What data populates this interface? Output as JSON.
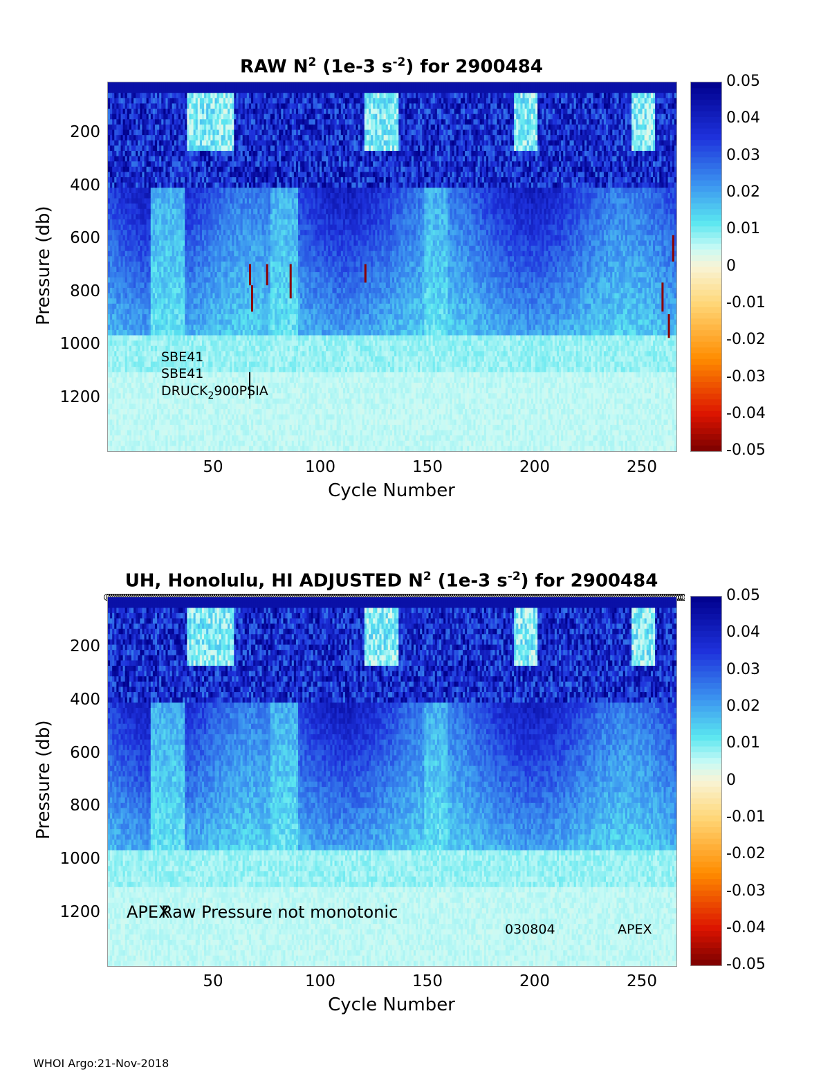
{
  "chart_data": [
    {
      "type": "heatmap",
      "title_prefix": "RAW N",
      "title_exp": "2",
      "title_units": " (1e-3 s",
      "title_units_exp": "-2",
      "title_suffix": ") for 2900484",
      "xlabel": "Cycle Number",
      "ylabel": "Pressure (db)",
      "x_ticks": [
        "50",
        "100",
        "150",
        "200",
        "250"
      ],
      "y_ticks": [
        "200",
        "400",
        "600",
        "800",
        "1000",
        "1200"
      ],
      "xlim": [
        1,
        266
      ],
      "ylim": [
        1400,
        0
      ],
      "colorbar_ticks": [
        "0.05",
        "0.04",
        "0.03",
        "0.02",
        "0.01",
        "0",
        "-0.01",
        "-0.02",
        "-0.03",
        "-0.04",
        "-0.05"
      ],
      "clim": [
        -0.05,
        0.05
      ],
      "annotations": [
        "SBE41",
        "SBE41",
        "DRUCK",
        "2",
        "900PSIA"
      ]
    },
    {
      "type": "heatmap",
      "title_prefix": "UH, Honolulu, HI  ADJUSTED N",
      "title_exp": "2",
      "title_units": " (1e-3 s",
      "title_units_exp": "-2",
      "title_suffix": ") for 2900484",
      "xlabel": "Cycle Number",
      "ylabel": "Pressure (db)",
      "x_ticks": [
        "50",
        "100",
        "150",
        "200",
        "250"
      ],
      "y_ticks": [
        "200",
        "400",
        "600",
        "800",
        "1000",
        "1200"
      ],
      "xlim": [
        1,
        266
      ],
      "ylim": [
        1400,
        0
      ],
      "colorbar_ticks": [
        "0.05",
        "0.04",
        "0.03",
        "0.02",
        "0.01",
        "0",
        "-0.01",
        "-0.02",
        "-0.03",
        "-0.04",
        "-0.05"
      ],
      "clim": [
        -0.05,
        0.05
      ],
      "annotations": [
        "APEX",
        "Raw Pressure not monotonic",
        "030804",
        "APEX"
      ]
    }
  ],
  "footer": "WHOI Argo:21-Nov-2018"
}
